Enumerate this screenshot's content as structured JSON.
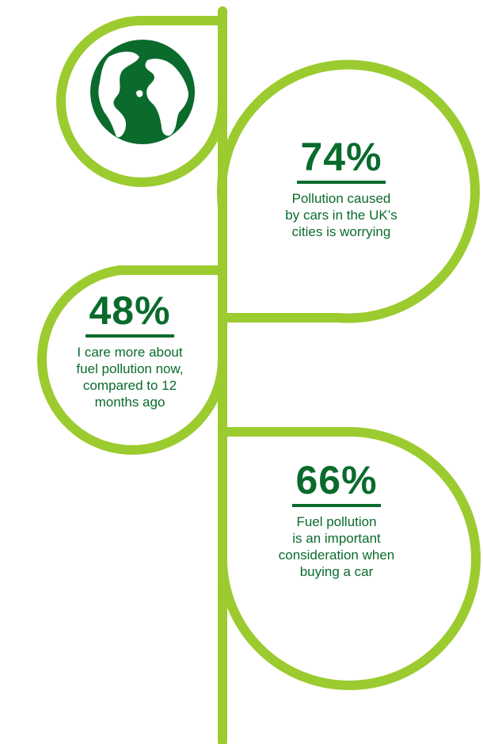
{
  "colors": {
    "lime": "#9bcb2f",
    "dark_green": "#0a6b2c",
    "background": "#ffffff"
  },
  "icon": "globe-icon",
  "stats": [
    {
      "value": "74%",
      "text": [
        "Pollution caused",
        "by cars in the UK’s",
        "cities is worrying"
      ]
    },
    {
      "value": "48%",
      "text": [
        "I care more about",
        "fuel pollution now,",
        "compared to 12",
        "months ago"
      ]
    },
    {
      "value": "66%",
      "text": [
        "Fuel pollution",
        "is an important",
        "consideration when",
        "buying a car"
      ]
    }
  ]
}
